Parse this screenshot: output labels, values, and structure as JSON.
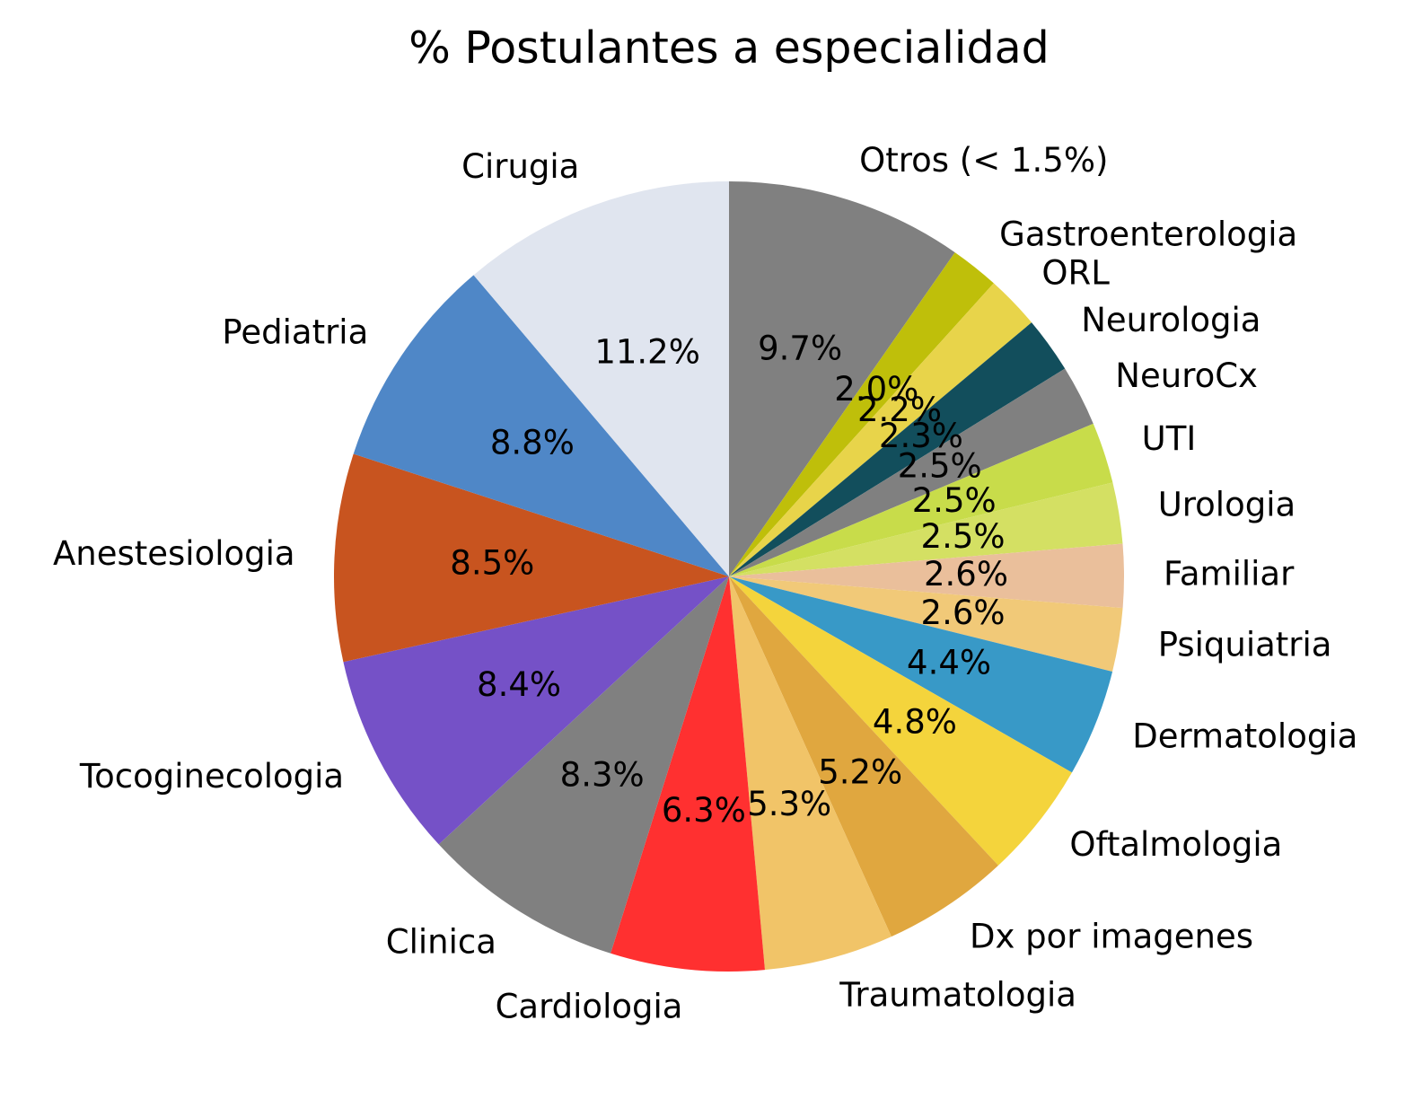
{
  "chart_data": {
    "type": "pie",
    "title": "% Postulantes a especialidad",
    "start_angle_deg": 90,
    "direction": "clockwise",
    "slices": [
      {
        "label": "Otros (< 1.5%)",
        "value": 9.7,
        "pct_label": "9.7%",
        "color": "#808080"
      },
      {
        "label": "Gastroenterologia",
        "value": 2.0,
        "pct_label": "2.0%",
        "color": "#bfbf0a"
      },
      {
        "label": "ORL",
        "value": 2.2,
        "pct_label": "2.2%",
        "color": "#e8d44a"
      },
      {
        "label": "Neurologia",
        "value": 2.3,
        "pct_label": "2.3%",
        "color": "#124e5c"
      },
      {
        "label": "NeuroCx",
        "value": 2.5,
        "pct_label": "2.5%",
        "color": "#808080"
      },
      {
        "label": "UTI",
        "value": 2.5,
        "pct_label": "2.5%",
        "color": "#c8dc4a"
      },
      {
        "label": "Urologia",
        "value": 2.5,
        "pct_label": "2.5%",
        "color": "#d4e063"
      },
      {
        "label": "Familiar",
        "value": 2.6,
        "pct_label": "2.6%",
        "color": "#eabf9b"
      },
      {
        "label": "Psiquiatria",
        "value": 2.6,
        "pct_label": "2.6%",
        "color": "#f1c978"
      },
      {
        "label": "Dermatologia",
        "value": 4.4,
        "pct_label": "4.4%",
        "color": "#3899c7"
      },
      {
        "label": "Oftalmologia",
        "value": 4.8,
        "pct_label": "4.8%",
        "color": "#f4d43c"
      },
      {
        "label": "Dx por imagenes",
        "value": 5.2,
        "pct_label": "5.2%",
        "color": "#e0a73f"
      },
      {
        "label": "Traumatologia",
        "value": 5.3,
        "pct_label": "5.3%",
        "color": "#f1c468"
      },
      {
        "label": "Cardiologia",
        "value": 6.3,
        "pct_label": "6.3%",
        "color": "#ff3030"
      },
      {
        "label": "Clinica",
        "value": 8.3,
        "pct_label": "8.3%",
        "color": "#808080"
      },
      {
        "label": "Tocoginecologia",
        "value": 8.4,
        "pct_label": "8.4%",
        "color": "#7551c7"
      },
      {
        "label": "Anestesiologia",
        "value": 8.5,
        "pct_label": "8.5%",
        "color": "#c8541f"
      },
      {
        "label": "Pediatria",
        "value": 8.8,
        "pct_label": "8.8%",
        "color": "#4f87c7"
      },
      {
        "label": "Cirugia",
        "value": 11.2,
        "pct_label": "11.2%",
        "color": "#e0e5ef"
      }
    ]
  }
}
